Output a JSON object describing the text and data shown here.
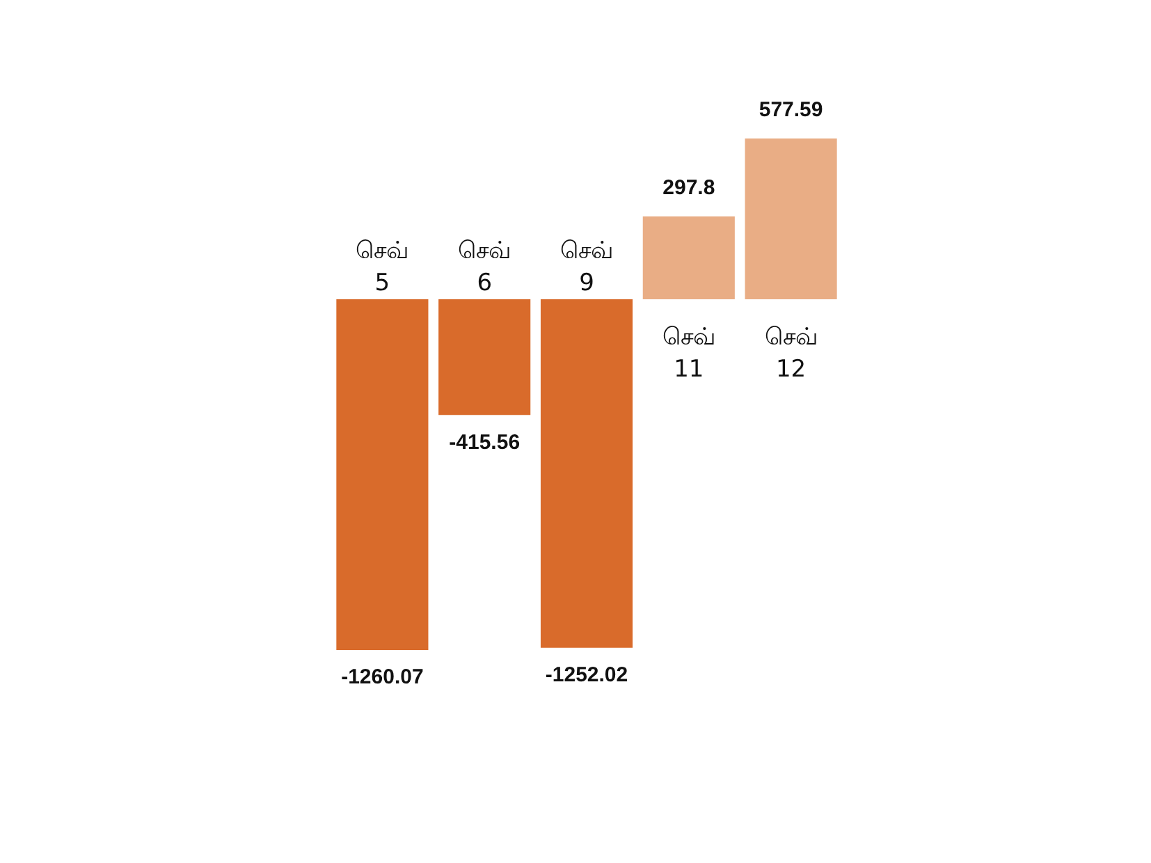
{
  "chart_data": {
    "type": "bar",
    "categories": [
      "செவ் 5",
      "செவ் 6",
      "செவ் 9",
      "செவ் 11",
      "செவ் 12"
    ],
    "values": [
      -1260.07,
      -415.56,
      -1252.02,
      297.8,
      577.59
    ],
    "colors": [
      "#d96b2b",
      "#d96b2b",
      "#d96b2b",
      "#e9ad85",
      "#e9ad85"
    ],
    "data_labels": true
  }
}
